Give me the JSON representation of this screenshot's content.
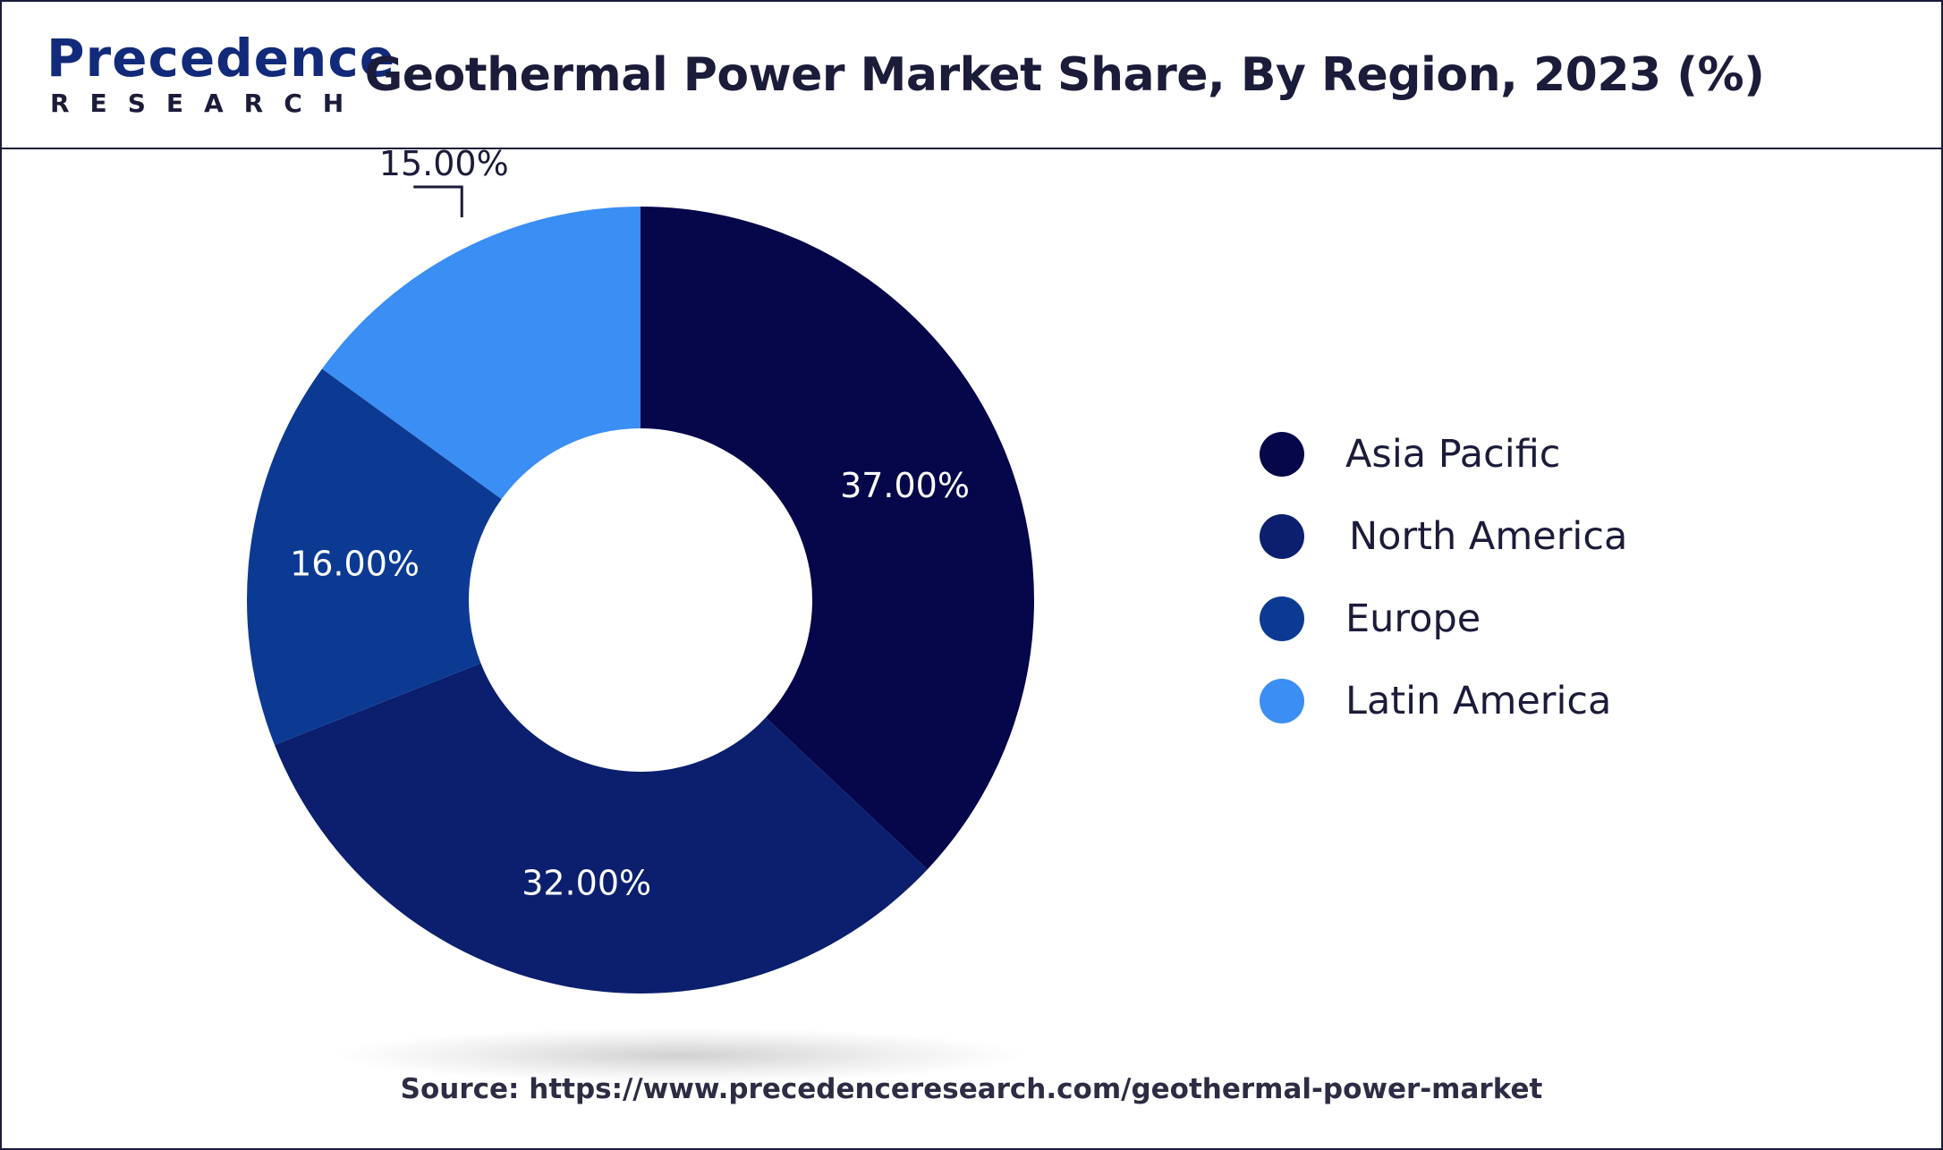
{
  "header": {
    "logo_main": "Precedence",
    "logo_sub": "RESEARCH",
    "title": "Geothermal Power Market Share, By Region, 2023 (%)"
  },
  "chart_data": {
    "type": "pie",
    "subtype": "donut",
    "title": "Geothermal Power Market Share, By Region, 2023 (%)",
    "categories": [
      "Asia Pacific",
      "North America",
      "Europe",
      "Latin America"
    ],
    "values": [
      37.0,
      32.0,
      16.0,
      15.0
    ],
    "labels": [
      "37.00%",
      "32.00%",
      "16.00%",
      "15.00%"
    ],
    "colors": [
      "#06064a",
      "#0b1f6e",
      "#0c3a93",
      "#3b8ef3"
    ],
    "legend_position": "right",
    "start_angle": "top, clockwise"
  },
  "legend": {
    "items": [
      {
        "label": "Asia Pacific",
        "color": "#06064a"
      },
      {
        "label": "North America",
        "color": "#0b1f6e"
      },
      {
        "label": "Europe",
        "color": "#0c3a93"
      },
      {
        "label": "Latin America",
        "color": "#3b8ef3"
      }
    ]
  },
  "footer": {
    "source": "Source: https://www.precedenceresearch.com/geothermal-power-market"
  }
}
